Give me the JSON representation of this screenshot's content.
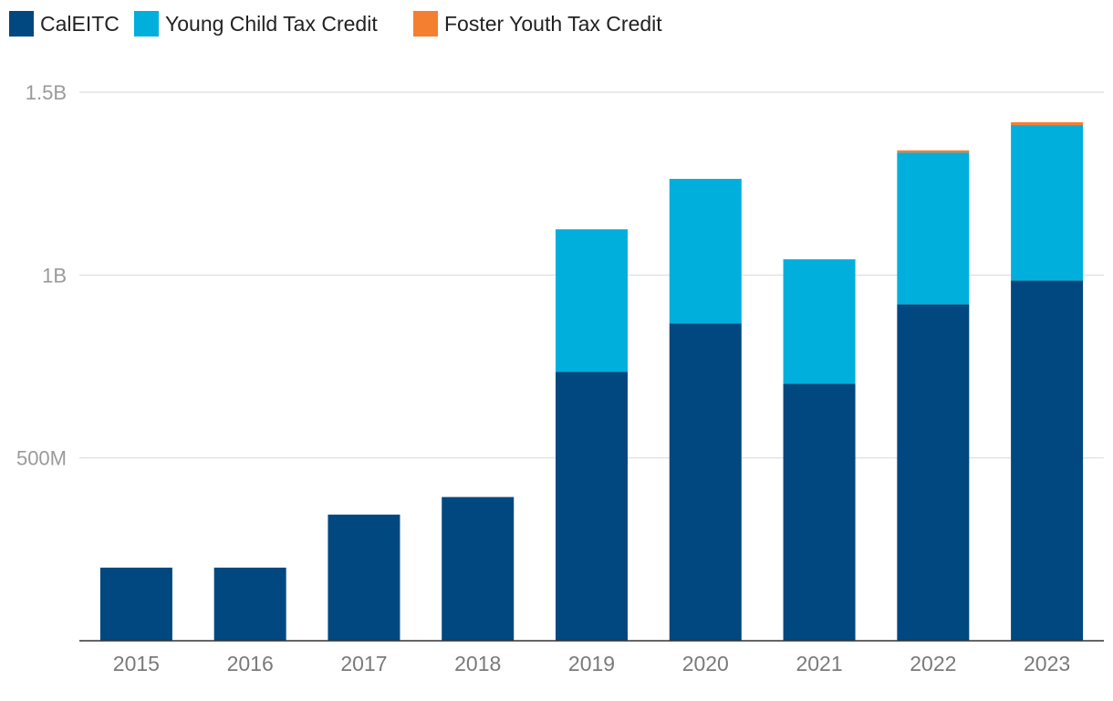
{
  "chart_data": {
    "type": "bar",
    "stacked": true,
    "title": "",
    "xlabel": "",
    "ylabel": "",
    "categories": [
      "2015",
      "2016",
      "2017",
      "2018",
      "2019",
      "2020",
      "2021",
      "2022",
      "2023"
    ],
    "series": [
      {
        "name": "CalEITC",
        "color": "#00487f",
        "values": [
          200000000,
          200000000,
          345000000,
          393000000,
          735000000,
          868000000,
          703000000,
          920000000,
          985000000
        ]
      },
      {
        "name": "Young Child Tax Credit",
        "color": "#00afdc",
        "values": [
          0,
          0,
          0,
          0,
          390000000,
          395000000,
          340000000,
          415000000,
          425000000
        ]
      },
      {
        "name": "Foster Youth Tax Credit",
        "color": "#f47f30",
        "values": [
          0,
          0,
          0,
          0,
          0,
          0,
          0,
          6000000,
          8000000
        ]
      }
    ],
    "ylim": [
      0,
      1500000000
    ],
    "yticks": [
      {
        "value": 500000000,
        "label": "500M"
      },
      {
        "value": 1000000000,
        "label": "1B"
      },
      {
        "value": 1500000000,
        "label": "1.5B"
      }
    ],
    "grid": true,
    "legend_position": "top-left"
  }
}
